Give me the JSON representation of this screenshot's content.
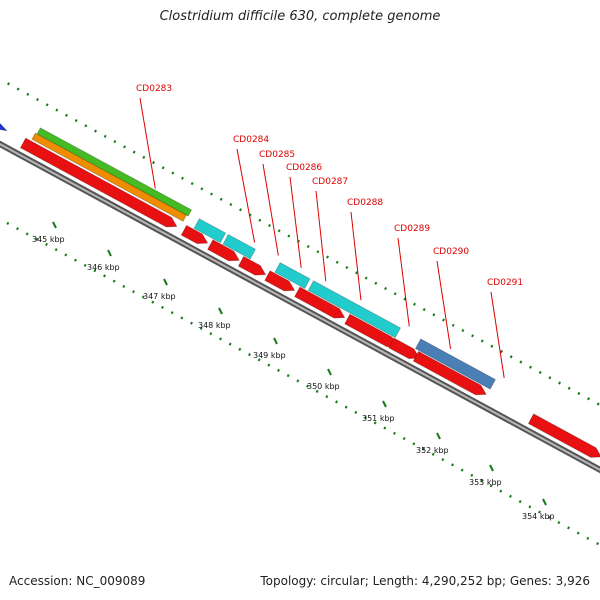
{
  "title": "Clostridium difficile 630, complete genome",
  "footer": {
    "accession": "Accession: NC_009089",
    "summary": "Topology: circular; Length: 4,290,252 bp; Genes: 3,926"
  },
  "colors": {
    "backbone": "#808080",
    "cds_red": "#e81010",
    "cds_blue": "#4a7fb5",
    "cds_cyan": "#22cccc",
    "feature_green": "#44bb22",
    "feature_orange": "#f08c00",
    "grid_dots": "#1a7a1a",
    "label_red": "#dd0000"
  },
  "scale": {
    "unit": "kbp",
    "ticks": [
      {
        "kbp": 345,
        "label": "345 kbp"
      },
      {
        "kbp": 346,
        "label": "346 kbp"
      },
      {
        "kbp": 347,
        "label": "347 kbp"
      },
      {
        "kbp": 348,
        "label": "348 kbp"
      },
      {
        "kbp": 349,
        "label": "349 kbp"
      },
      {
        "kbp": 350,
        "label": "350 kbp"
      },
      {
        "kbp": 351,
        "label": "351 kbp"
      },
      {
        "kbp": 352,
        "label": "352 kbp"
      },
      {
        "kbp": 353,
        "label": "353 kbp"
      },
      {
        "kbp": 354,
        "label": "354 kbp"
      }
    ]
  },
  "genes": [
    {
      "name": "CD0283"
    },
    {
      "name": "CD0284"
    },
    {
      "name": "CD0285"
    },
    {
      "name": "CD0286"
    },
    {
      "name": "CD0287"
    },
    {
      "name": "CD0288"
    },
    {
      "name": "CD0289"
    },
    {
      "name": "CD0290"
    },
    {
      "name": "CD0291"
    }
  ]
}
